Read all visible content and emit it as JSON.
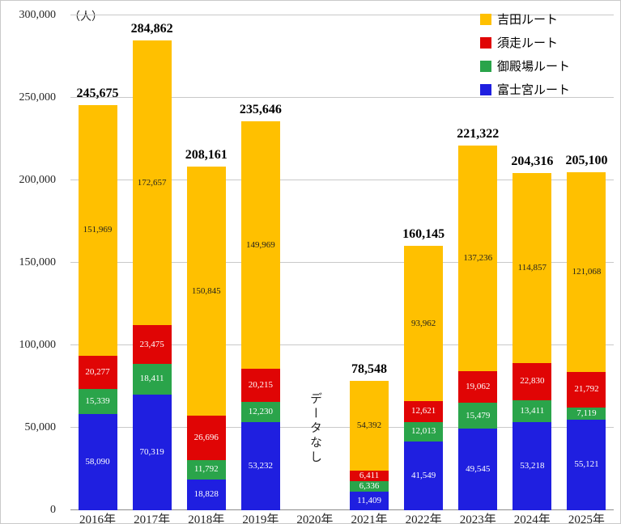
{
  "chart_data": {
    "type": "bar",
    "stacked": true,
    "unit_label": "（人）",
    "grid": true,
    "legend_position": "top-right",
    "ylim": [
      0,
      300000
    ],
    "y_ticks": [
      0,
      50000,
      100000,
      150000,
      200000,
      250000,
      300000
    ],
    "categories": [
      "2016年",
      "2017年",
      "2018年",
      "2019年",
      "2020年",
      "2021年",
      "2022年",
      "2023年",
      "2024年",
      "2025年"
    ],
    "no_data": {
      "category": "2020年",
      "label": "データなし"
    },
    "series": [
      {
        "name": "吉田ルート",
        "color": "#FFC000",
        "label_color": "#1f1f1f",
        "values": [
          151969,
          172657,
          150845,
          149969,
          null,
          54392,
          93962,
          137236,
          114857,
          121068
        ]
      },
      {
        "name": "須走ルート",
        "color": "#E00505",
        "label_color": "#ffffff",
        "values": [
          20277,
          23475,
          26696,
          20215,
          null,
          6411,
          12621,
          19062,
          22830,
          21792
        ]
      },
      {
        "name": "御殿場ルート",
        "color": "#2AA44A",
        "label_color": "#ffffff",
        "values": [
          15339,
          18411,
          11792,
          12230,
          null,
          6336,
          12013,
          15479,
          13411,
          7119
        ]
      },
      {
        "name": "富士宮ルート",
        "color": "#1F1FE0",
        "label_color": "#ffffff",
        "values": [
          58090,
          70319,
          18828,
          53232,
          null,
          11409,
          41549,
          49545,
          53218,
          55121
        ]
      }
    ],
    "totals": [
      245675,
      284862,
      208161,
      235646,
      null,
      78548,
      160145,
      221322,
      204316,
      205100
    ]
  }
}
